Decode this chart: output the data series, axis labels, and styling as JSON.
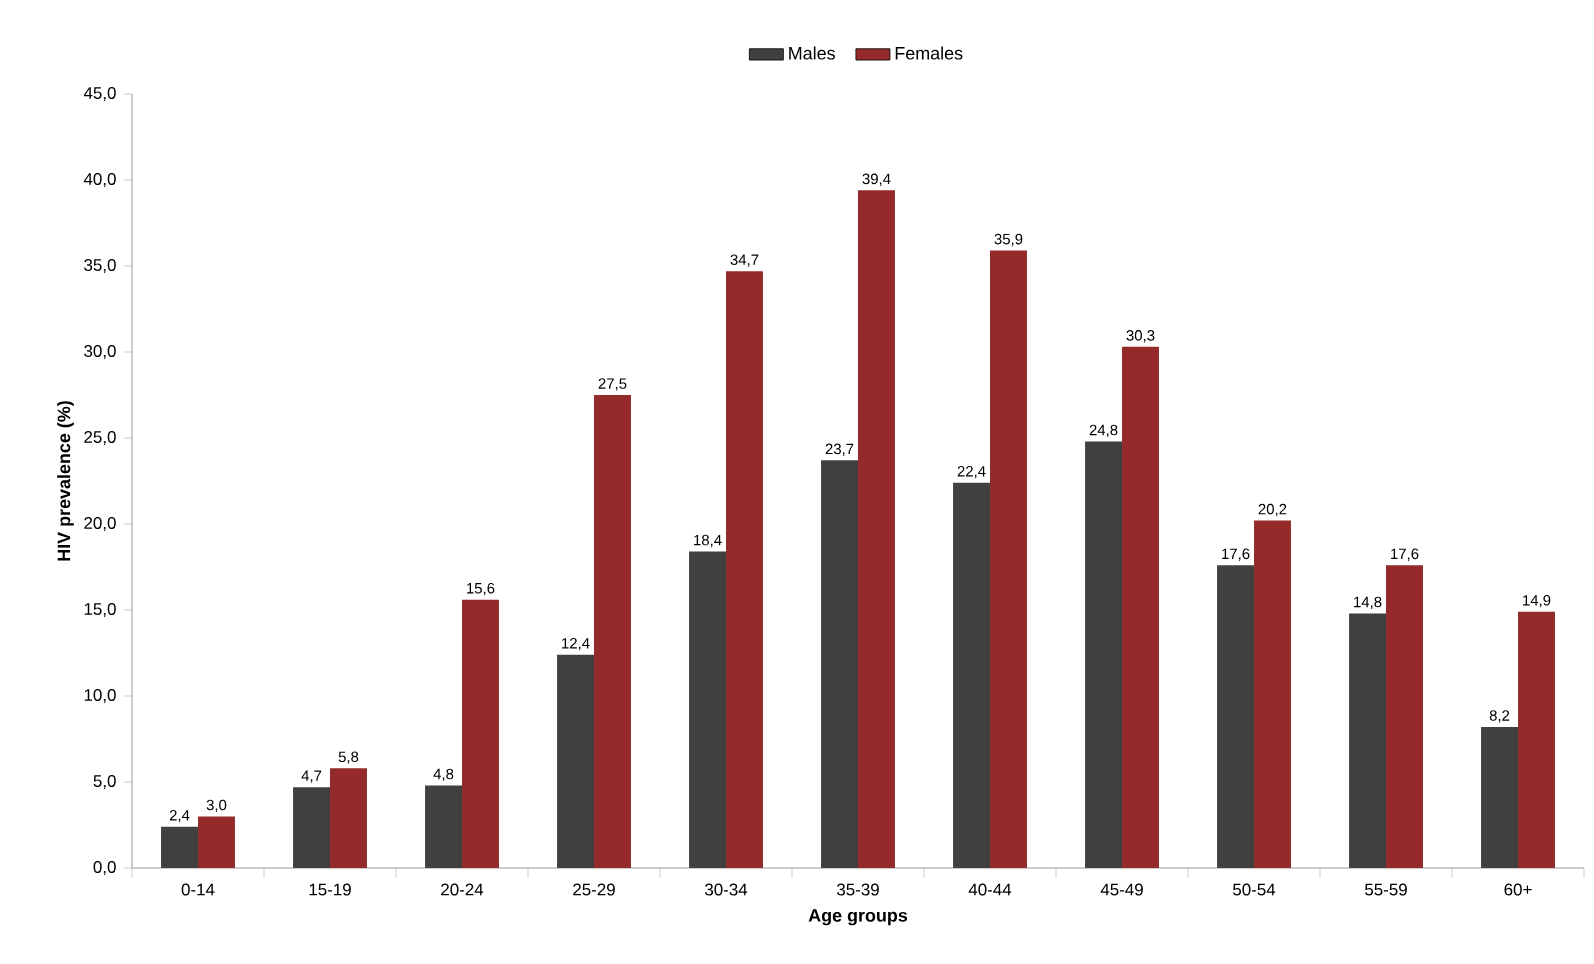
{
  "chart_data": {
    "type": "bar",
    "xlabel": "Age groups",
    "ylabel": "HIV prevalence (%)",
    "categories": [
      "0-14",
      "15-19",
      "20-24",
      "25-29",
      "30-34",
      "35-39",
      "40-44",
      "45-49",
      "50-54",
      "55-59",
      "60+"
    ],
    "series": [
      {
        "name": "Males",
        "color": "#404040",
        "values": [
          2.4,
          4.7,
          4.8,
          12.4,
          18.4,
          23.7,
          22.4,
          24.8,
          17.6,
          14.8,
          8.2
        ],
        "value_labels": [
          "2,4",
          "4,7",
          "4,8",
          "12,4",
          "18,4",
          "23,7",
          "22,4",
          "24,8",
          "17,6",
          "14,8",
          "8,2"
        ]
      },
      {
        "name": "Females",
        "color": "#952a2b",
        "values": [
          3.0,
          5.8,
          15.6,
          27.5,
          34.7,
          39.4,
          35.9,
          30.3,
          20.2,
          17.6,
          14.9
        ],
        "value_labels": [
          "3,0",
          "5,8",
          "15,6",
          "27,5",
          "34,7",
          "39,4",
          "35,9",
          "30,3",
          "20,2",
          "17,6",
          "14,9"
        ]
      }
    ],
    "ylim": [
      0,
      45
    ],
    "yticks": [
      {
        "value": 0,
        "label": "0,0"
      },
      {
        "value": 5,
        "label": "5,0"
      },
      {
        "value": 10,
        "label": "10,0"
      },
      {
        "value": 15,
        "label": "15,0"
      },
      {
        "value": 20,
        "label": "20,0"
      },
      {
        "value": 25,
        "label": "25,0"
      },
      {
        "value": 30,
        "label": "30,0"
      },
      {
        "value": 35,
        "label": "35,0"
      },
      {
        "value": 40,
        "label": "40,0"
      },
      {
        "value": 45,
        "label": "45,0"
      }
    ],
    "legend": "top"
  }
}
